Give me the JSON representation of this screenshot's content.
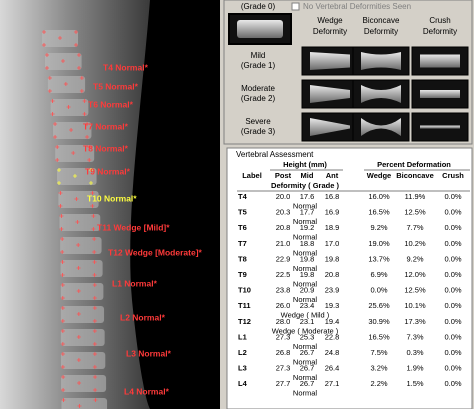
{
  "xray_labels": [
    "T4  Normal*",
    "T5  Normal*",
    "T6  Normal*",
    "T7  Normal*",
    "T8  Normal*",
    "T9  Normal*",
    "T10  Normal*",
    "T11  Wedge [Mild]*",
    "T12  Wedge [Moderate]*",
    "L1  Normal*",
    "L2  Normal*",
    "L3  Normal*",
    "L4  Normal*"
  ],
  "grade_panel": {
    "grade0": "(Grade 0)",
    "checkbox": "No Vertebral Deformities Seen",
    "columns": [
      {
        "line1": "Wedge",
        "line2": "Deformity"
      },
      {
        "line1": "Biconcave",
        "line2": "Deformity"
      },
      {
        "line1": "Crush",
        "line2": "Deformity"
      }
    ],
    "rows": [
      {
        "line1": "Mild",
        "line2": "(Grade 1)"
      },
      {
        "line1": "Moderate",
        "line2": "(Grade 2)"
      },
      {
        "line1": "Severe",
        "line2": "(Grade 3)"
      }
    ]
  },
  "table": {
    "title": "Vertebral Assessment",
    "group_height": "Height (mm)",
    "group_percent": "Percent Deformation",
    "columns": [
      "Label",
      "Post",
      "Mid",
      "Ant",
      "Wedge",
      "Biconcave",
      "Crush"
    ],
    "grade_header": "Deformity ( Grade )",
    "rows": [
      {
        "label": "T4",
        "post": "20.0",
        "mid": "17.6",
        "ant": "16.8",
        "wedge": "16.0%",
        "biconcave": "11.9%",
        "crush": "0.0%",
        "grade": "Normal"
      },
      {
        "label": "T5",
        "post": "20.3",
        "mid": "17.7",
        "ant": "16.9",
        "wedge": "16.5%",
        "biconcave": "12.5%",
        "crush": "0.0%",
        "grade": "Normal"
      },
      {
        "label": "T6",
        "post": "20.8",
        "mid": "19.2",
        "ant": "18.9",
        "wedge": "9.2%",
        "biconcave": "7.7%",
        "crush": "0.0%",
        "grade": "Normal"
      },
      {
        "label": "T7",
        "post": "21.0",
        "mid": "18.8",
        "ant": "17.0",
        "wedge": "19.0%",
        "biconcave": "10.2%",
        "crush": "0.0%",
        "grade": "Normal"
      },
      {
        "label": "T8",
        "post": "22.9",
        "mid": "19.8",
        "ant": "19.8",
        "wedge": "13.7%",
        "biconcave": "9.2%",
        "crush": "0.0%",
        "grade": "Normal"
      },
      {
        "label": "T9",
        "post": "22.5",
        "mid": "19.8",
        "ant": "20.8",
        "wedge": "6.9%",
        "biconcave": "12.0%",
        "crush": "0.0%",
        "grade": "Normal"
      },
      {
        "label": "T10",
        "post": "23.8",
        "mid": "20.9",
        "ant": "23.9",
        "wedge": "0.0%",
        "biconcave": "12.5%",
        "crush": "0.0%",
        "grade": "Normal"
      },
      {
        "label": "T11",
        "post": "26.0",
        "mid": "23.4",
        "ant": "19.3",
        "wedge": "25.6%",
        "biconcave": "10.1%",
        "crush": "0.0%",
        "grade": "Wedge ( Mild )"
      },
      {
        "label": "T12",
        "post": "28.0",
        "mid": "23.1",
        "ant": "19.4",
        "wedge": "30.9%",
        "biconcave": "17.3%",
        "crush": "0.0%",
        "grade": "Wedge ( Moderate )"
      },
      {
        "label": "L1",
        "post": "27.3",
        "mid": "25.3",
        "ant": "22.8",
        "wedge": "16.5%",
        "biconcave": "7.3%",
        "crush": "0.0%",
        "grade": "Normal"
      },
      {
        "label": "L2",
        "post": "26.8",
        "mid": "26.7",
        "ant": "24.8",
        "wedge": "7.5%",
        "biconcave": "0.3%",
        "crush": "0.0%",
        "grade": "Normal"
      },
      {
        "label": "L3",
        "post": "27.3",
        "mid": "26.7",
        "ant": "26.4",
        "wedge": "3.2%",
        "biconcave": "1.9%",
        "crush": "0.0%",
        "grade": "Normal"
      },
      {
        "label": "L4",
        "post": "27.7",
        "mid": "26.7",
        "ant": "27.1",
        "wedge": "2.2%",
        "biconcave": "1.5%",
        "crush": "0.0%",
        "grade": "Normal"
      }
    ]
  }
}
